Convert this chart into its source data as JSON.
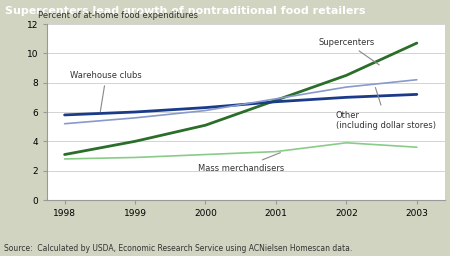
{
  "title": "Supercenters lead growth of nontraditional food retailers",
  "ylabel": "Percent of at-home food expenditures",
  "source": "Source:  Calculated by USDA, Economic Research Service using ACNielsen Homescan data.",
  "years": [
    1998,
    1999,
    2000,
    2001,
    2002,
    2003
  ],
  "series": {
    "Supercenters": {
      "values": [
        3.1,
        4.0,
        5.1,
        6.8,
        8.5,
        10.7
      ],
      "color": "#2a6e2a",
      "linewidth": 2.0
    },
    "Warehouse clubs": {
      "values": [
        5.8,
        6.0,
        6.3,
        6.7,
        7.0,
        7.2
      ],
      "color": "#1a3a8a",
      "linewidth": 2.0
    },
    "Other": {
      "values": [
        5.2,
        5.6,
        6.1,
        6.9,
        7.7,
        8.2
      ],
      "color": "#8899cc",
      "linewidth": 1.2
    },
    "Mass merchandisers": {
      "values": [
        2.8,
        2.9,
        3.1,
        3.3,
        3.9,
        3.6
      ],
      "color": "#88cc88",
      "linewidth": 1.2
    }
  },
  "ylim": [
    0,
    12
  ],
  "yticks": [
    0,
    2,
    4,
    6,
    8,
    10,
    12
  ],
  "xticks": [
    1998,
    1999,
    2000,
    2001,
    2002,
    2003
  ],
  "title_bg_color": "#1f5c99",
  "title_text_color": "#ffffff",
  "plot_bg_color": "#ffffff",
  "outer_bg_color": "#d0d4c0",
  "annotation_color": "#555555",
  "arrow_color": "#888888"
}
